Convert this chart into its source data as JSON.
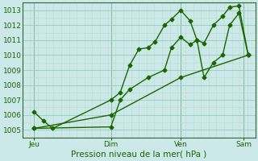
{
  "title": "",
  "xlabel": "Pression niveau de la mer( hPa )",
  "bg_color": "#cce8e8",
  "grid_major_color": "#99ccbb",
  "grid_minor_color": "#bbddcc",
  "line_color": "#1a6600",
  "ylim": [
    1004.5,
    1013.5
  ],
  "day_labels": [
    "Jeu",
    "Dim",
    "Ven",
    "Sam"
  ],
  "day_positions": [
    0.05,
    0.38,
    0.68,
    0.95
  ],
  "series1_x": [
    0.05,
    0.09,
    0.13,
    0.38,
    0.42,
    0.46,
    0.5,
    0.54,
    0.57,
    0.61,
    0.64,
    0.68,
    0.72,
    0.75,
    0.78,
    0.82,
    0.86,
    0.89,
    0.93,
    0.97
  ],
  "series1_y": [
    1006.2,
    1005.6,
    1005.1,
    1007.0,
    1007.5,
    1009.3,
    1010.4,
    1010.5,
    1010.9,
    1012.0,
    1012.4,
    1013.0,
    1012.3,
    1011.0,
    1010.8,
    1012.0,
    1012.6,
    1013.2,
    1013.3,
    1010.0
  ],
  "series2_x": [
    0.05,
    0.38,
    0.42,
    0.46,
    0.54,
    0.61,
    0.64,
    0.68,
    0.72,
    0.75,
    0.78,
    0.82,
    0.86,
    0.89,
    0.93,
    0.97
  ],
  "series2_y": [
    1005.1,
    1005.2,
    1007.0,
    1007.7,
    1008.5,
    1009.0,
    1010.5,
    1011.2,
    1010.7,
    1011.0,
    1008.5,
    1009.5,
    1010.0,
    1012.0,
    1012.8,
    1010.0
  ],
  "series3_x": [
    0.05,
    0.38,
    0.68,
    0.97
  ],
  "series3_y": [
    1005.1,
    1006.0,
    1008.5,
    1010.0
  ]
}
